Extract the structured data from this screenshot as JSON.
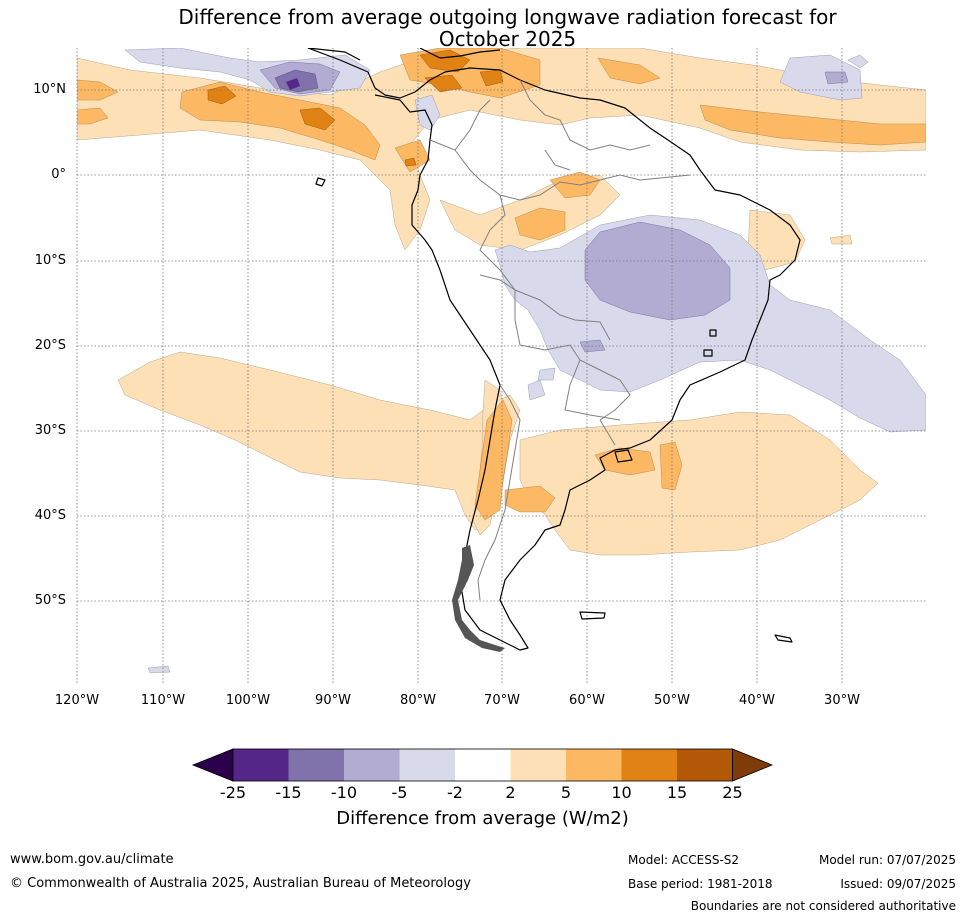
{
  "title": {
    "line1": "Difference from average outgoing longwave radiation forecast for",
    "line2": "October 2025"
  },
  "axes": {
    "lat_labels": [
      "10°N",
      "0°",
      "10°S",
      "20°S",
      "30°S",
      "40°S",
      "50°S"
    ],
    "lon_labels": [
      "120°W",
      "110°W",
      "100°W",
      "90°W",
      "80°W",
      "70°W",
      "60°W",
      "50°W",
      "40°W",
      "30°W"
    ]
  },
  "colorbar": {
    "labels": [
      "-25",
      "-15",
      "-10",
      "-5",
      "-2",
      "2",
      "5",
      "10",
      "15",
      "25"
    ],
    "title": "Difference from average (W/m2)",
    "colors": {
      "under": "#2d004b",
      "neg25_15": "#542788",
      "neg15_10": "#8073ac",
      "neg10_5": "#b2abd2",
      "neg5_2": "#d8daeb",
      "neutral": "#ffffff",
      "pos2_5": "#fee0b6",
      "pos5_10": "#fdb863",
      "pos10_15": "#e08214",
      "pos15_25": "#b35806",
      "over": "#7f3b08"
    }
  },
  "footer": {
    "url": "www.bom.gov.au/climate",
    "copyright": "© Commonwealth of Australia 2025, Australian Bureau of Meteorology",
    "model": "Model: ACCESS-S2",
    "base_period": "Base period: 1981-2018",
    "model_run": "Model run: 07/07/2025",
    "issued": "Issued: 09/07/2025",
    "disclaimer": "Boundaries are not considered authoritative"
  }
}
